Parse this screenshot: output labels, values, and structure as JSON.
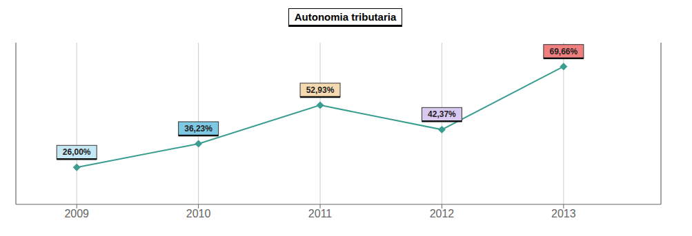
{
  "chart_data": {
    "type": "line",
    "title": "Autonomia tributaria",
    "x": [
      2009,
      2010,
      2011,
      2012,
      2013
    ],
    "values": [
      26.0,
      36.23,
      52.93,
      42.37,
      69.66
    ],
    "value_labels": [
      "26,00%",
      "36,23%",
      "52,93%",
      "42,37%",
      "69,66%"
    ],
    "data_labels": true,
    "color": "#3a9d8f",
    "colors": [
      "#c6e8f5",
      "#7ec8e3",
      "#f5d9b0",
      "#d9c8f0",
      "#f08080"
    ],
    "marker": "diamond",
    "xlim": [
      2008.5,
      2013.8
    ],
    "xticks": [
      2009,
      2010,
      2011,
      2012,
      2013
    ],
    "ylim": [
      10,
      80
    ],
    "yticks": [],
    "grid": true,
    "tick_labels": "x"
  }
}
